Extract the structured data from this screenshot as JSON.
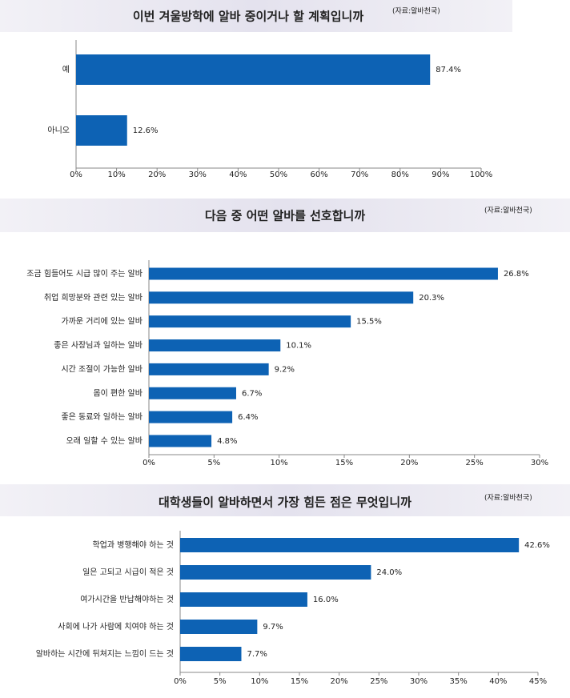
{
  "chart_data": [
    {
      "type": "bar",
      "orientation": "horizontal",
      "title": "이번 겨울방학에 알바 중이거나 할 계획입니까",
      "source": "(자료:알바천국)",
      "categories": [
        "예",
        "아니오"
      ],
      "values": [
        87.4,
        12.6
      ],
      "value_labels": [
        "87.4%",
        "12.6%"
      ],
      "color": "#0d62b4",
      "xlim": [
        0,
        100
      ],
      "xticks": [
        {
          "value": 0,
          "label": "0%"
        },
        {
          "value": 10,
          "label": "10%"
        },
        {
          "value": 20,
          "label": "20%"
        },
        {
          "value": 30,
          "label": "30%"
        },
        {
          "value": 40,
          "label": "40%"
        },
        {
          "value": 50,
          "label": "50%"
        },
        {
          "value": 60,
          "label": "60%"
        },
        {
          "value": 70,
          "label": "70%"
        },
        {
          "value": 80,
          "label": "80%"
        },
        {
          "value": 90,
          "label": "90%"
        },
        {
          "value": 100,
          "label": "100%"
        }
      ]
    },
    {
      "type": "bar",
      "orientation": "horizontal",
      "title": "다음 중 어떤 알바를 선호합니까",
      "source": "(자료:알바천국)",
      "categories": [
        "조금 힘들어도 시급 많이 주는 알바",
        "취업 희망분와 관련 있는 알바",
        "가까운 거리에 있는 알바",
        "좋은 사장님과 일하는 알바",
        "시간 조절이 가능한 알바",
        "몸이 편한 알바",
        "좋은 동료와 일하는 알바",
        "오래 일할 수 있는 알바"
      ],
      "values": [
        26.8,
        20.3,
        15.5,
        10.1,
        9.2,
        6.7,
        6.4,
        4.8
      ],
      "value_labels": [
        "26.8%",
        "20.3%",
        "15.5%",
        "10.1%",
        "9.2%",
        "6.7%",
        "6.4%",
        "4.8%"
      ],
      "color": "#0d62b4",
      "xlim": [
        0,
        30
      ],
      "xticks": [
        {
          "value": 0,
          "label": "0%"
        },
        {
          "value": 5,
          "label": "5%"
        },
        {
          "value": 10,
          "label": "10%"
        },
        {
          "value": 15,
          "label": "15%"
        },
        {
          "value": 20,
          "label": "20%"
        },
        {
          "value": 25,
          "label": "25%"
        },
        {
          "value": 30,
          "label": "30%"
        }
      ]
    },
    {
      "type": "bar",
      "orientation": "horizontal",
      "title": "대학생들이 알바하면서 가장 힘든 점은 무엇입니까",
      "source": "(자료:알바천국)",
      "categories": [
        "학업과 병행해야 하는 것",
        "일은 고되고 시급이 적은 것",
        "여가시간을 반납해야하는 것",
        "사회에 나가 사람에 치여야 하는 것",
        "알바하는 시간에 뒤쳐지는 느낌이 드는 것"
      ],
      "values": [
        42.6,
        24.0,
        16.0,
        9.7,
        7.7
      ],
      "value_labels": [
        "42.6%",
        "24.0%",
        "16.0%",
        "9.7%",
        "7.7%"
      ],
      "color": "#0d62b4",
      "xlim": [
        0,
        45
      ],
      "xticks": [
        {
          "value": 0,
          "label": "0%"
        },
        {
          "value": 5,
          "label": "5%"
        },
        {
          "value": 10,
          "label": "10%"
        },
        {
          "value": 15,
          "label": "15%"
        },
        {
          "value": 20,
          "label": "20%"
        },
        {
          "value": 25,
          "label": "25%"
        },
        {
          "value": 30,
          "label": "30%"
        },
        {
          "value": 35,
          "label": "35%"
        },
        {
          "value": 40,
          "label": "40%"
        },
        {
          "value": 45,
          "label": "45%"
        }
      ]
    }
  ]
}
